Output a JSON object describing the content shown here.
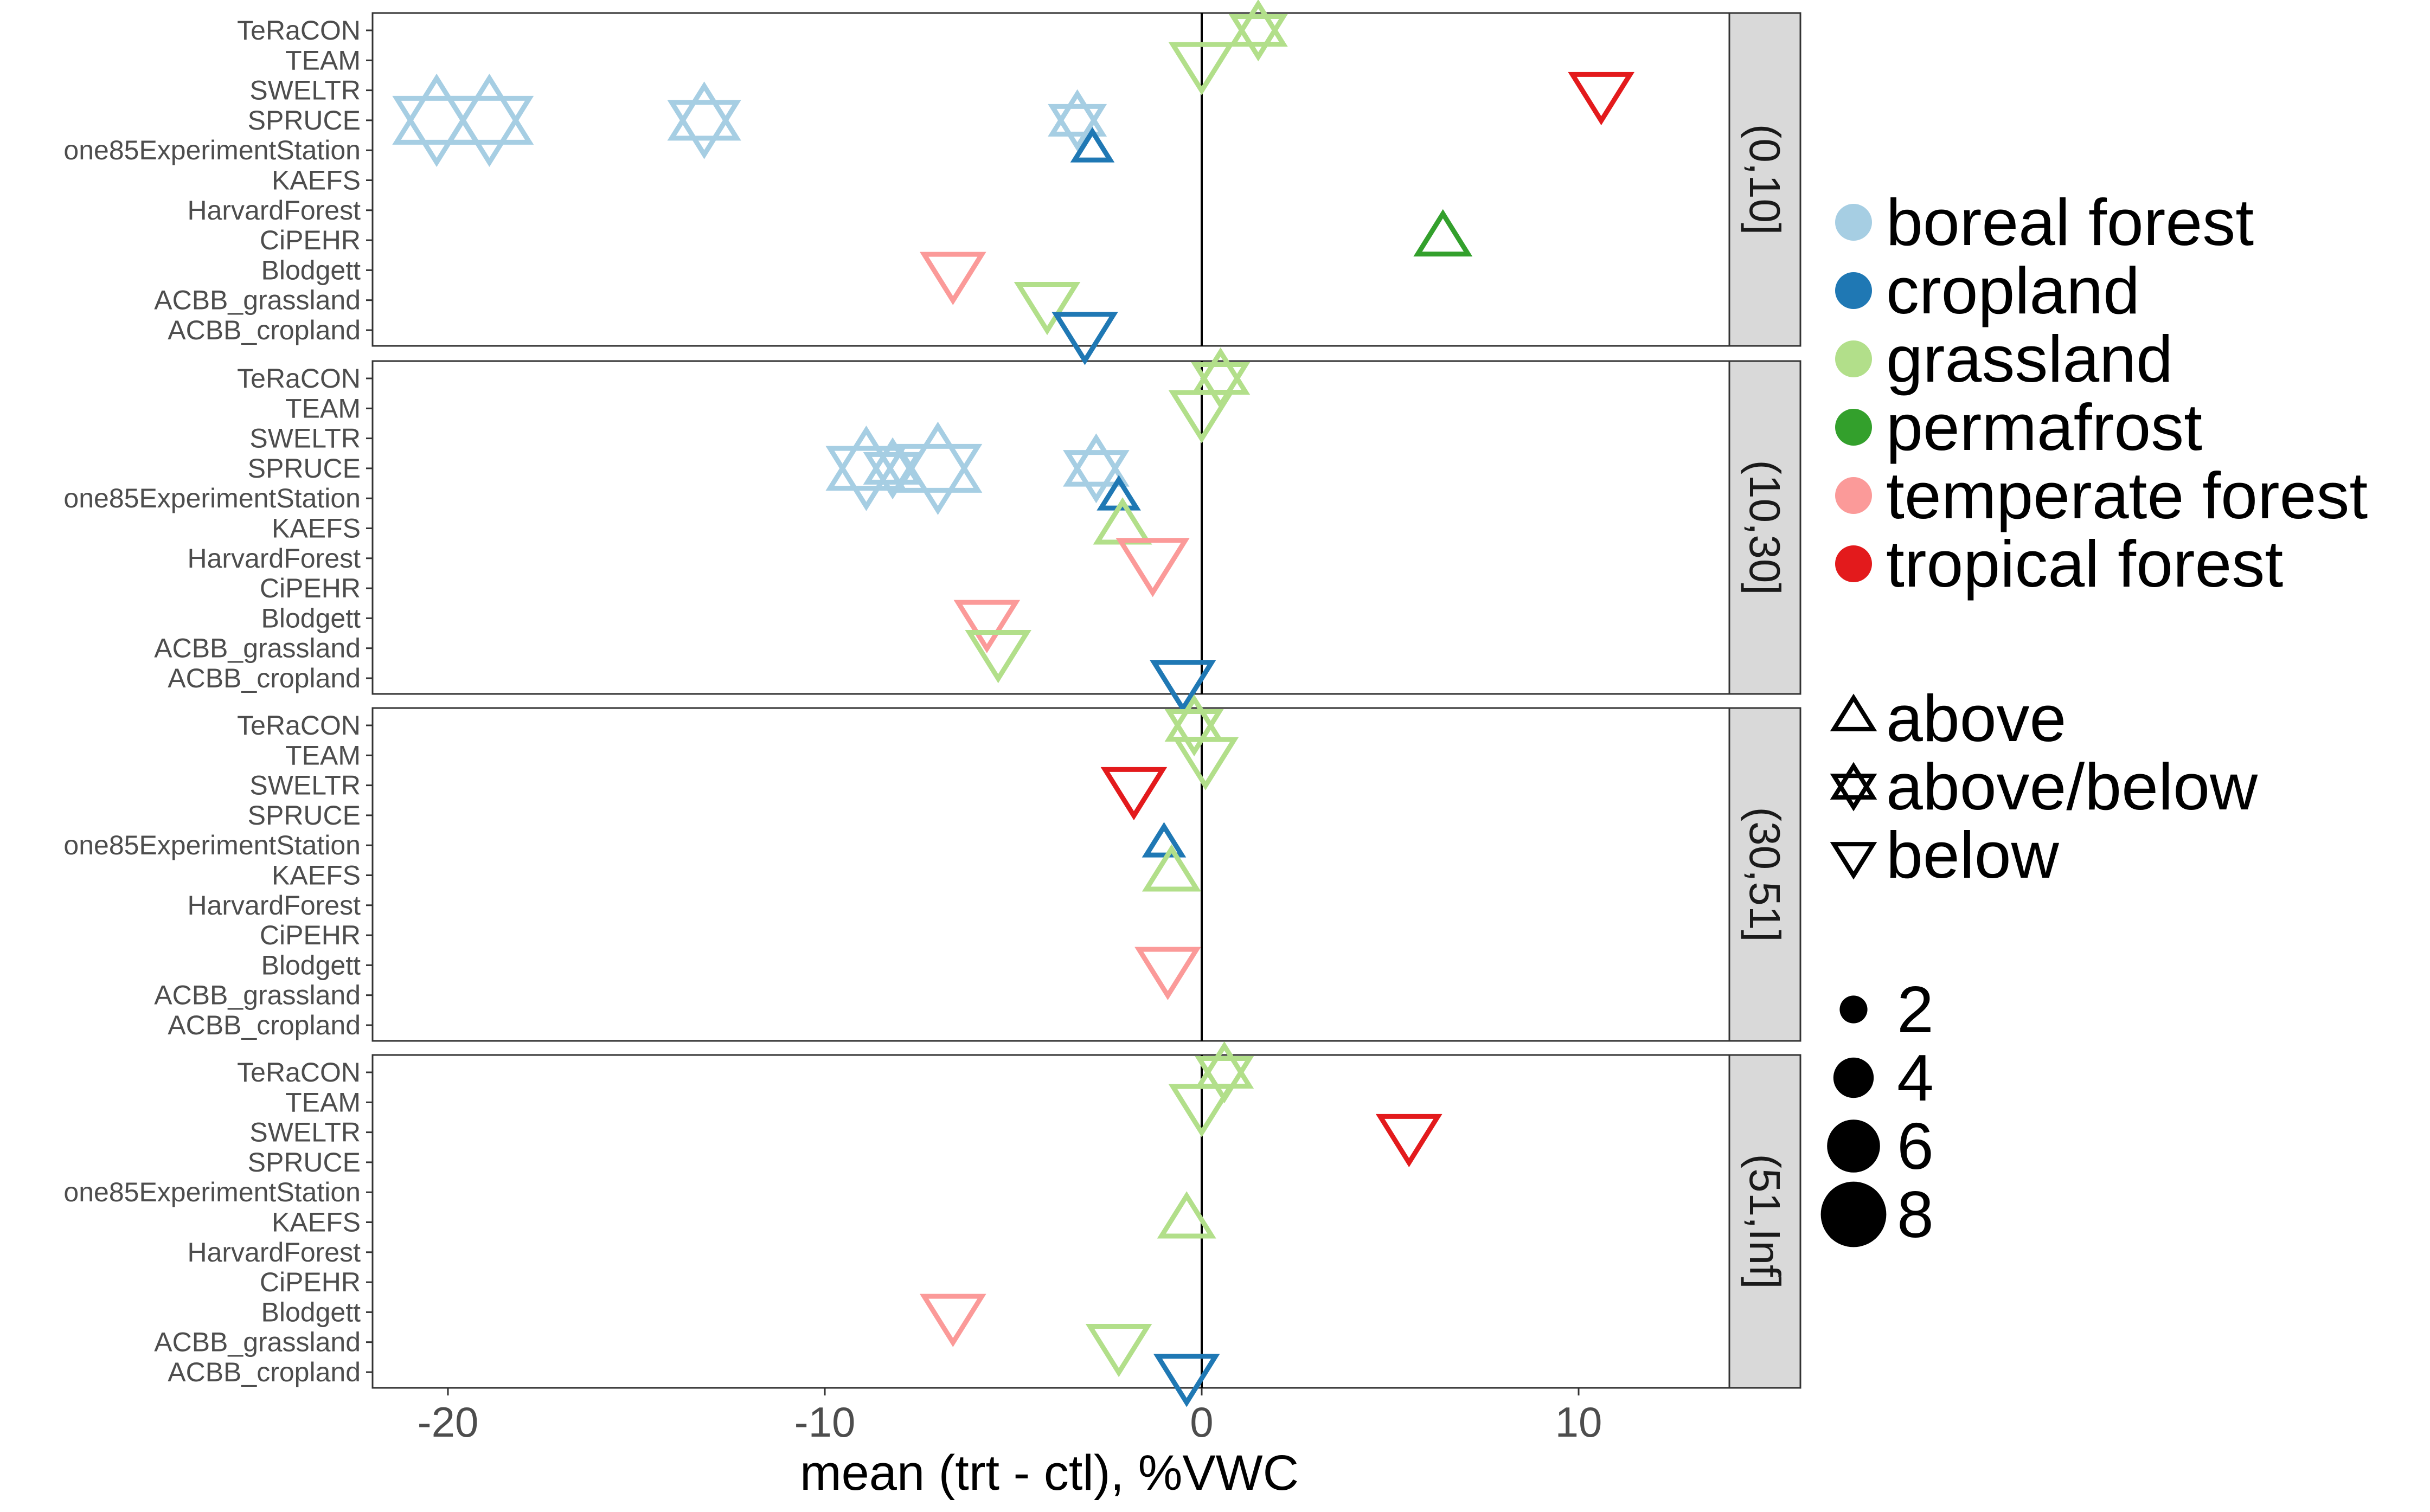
{
  "chart_data": {
    "type": "scatter",
    "xlabel": "mean (trt - ctl), %VWC",
    "xlim": [
      -22,
      14
    ],
    "x_ticks": [
      -20,
      -10,
      0,
      10
    ],
    "x_tick_labels": [
      "-20",
      "-10",
      "0",
      "10"
    ],
    "reference_line_x": 0,
    "grid": false,
    "legend_position": "right",
    "sites": [
      "TeRaCON",
      "TEAM",
      "SWELTR",
      "SPRUCE",
      "one85ExperimentStation",
      "KAEFS",
      "HarvardForest",
      "CiPEHR",
      "Blodgett",
      "ACBB_grassland",
      "ACBB_cropland"
    ],
    "facets": [
      "(0,10]",
      "(10,30]",
      "(30,51]",
      "(51,Inf]"
    ],
    "legend_ecosystem": [
      {
        "name": "boreal forest",
        "color": "#a6cee3"
      },
      {
        "name": "cropland",
        "color": "#1f78b4"
      },
      {
        "name": "grassland",
        "color": "#b2df8a"
      },
      {
        "name": "permafrost",
        "color": "#33a02c"
      },
      {
        "name": "temperate forest",
        "color": "#fb9a99"
      },
      {
        "name": "tropical forest",
        "color": "#e31a1c"
      }
    ],
    "legend_treatment": [
      {
        "name": "above",
        "shape": "triangle-up"
      },
      {
        "name": "above/below",
        "shape": "star-of-david"
      },
      {
        "name": "below",
        "shape": "triangle-down"
      }
    ],
    "legend_size": [
      {
        "label": "2",
        "value": 2
      },
      {
        "label": "4",
        "value": 4
      },
      {
        "label": "6",
        "value": 6
      },
      {
        "label": "8",
        "value": 8
      }
    ],
    "points": [
      {
        "facet": "(0,10]",
        "site": "TeRaCON",
        "x": 1.5,
        "ecosystem": "grassland",
        "treatment": "above/below",
        "size": 4
      },
      {
        "facet": "(0,10]",
        "site": "TEAM",
        "x": 0.0,
        "ecosystem": "grassland",
        "treatment": "below",
        "size": 5
      },
      {
        "facet": "(0,10]",
        "site": "SWELTR",
        "x": 10.6,
        "ecosystem": "tropical forest",
        "treatment": "below",
        "size": 5
      },
      {
        "facet": "(0,10]",
        "site": "SPRUCE",
        "x": -20.3,
        "ecosystem": "boreal forest",
        "treatment": "above/below",
        "size": 8
      },
      {
        "facet": "(0,10]",
        "site": "SPRUCE",
        "x": -18.9,
        "ecosystem": "boreal forest",
        "treatment": "above/below",
        "size": 8
      },
      {
        "facet": "(0,10]",
        "site": "SPRUCE",
        "x": -13.2,
        "ecosystem": "boreal forest",
        "treatment": "above/below",
        "size": 6
      },
      {
        "facet": "(0,10]",
        "site": "SPRUCE",
        "x": -3.3,
        "ecosystem": "boreal forest",
        "treatment": "above/below",
        "size": 4
      },
      {
        "facet": "(0,10]",
        "site": "one85ExperimentStation",
        "x": -2.9,
        "ecosystem": "cropland",
        "treatment": "above",
        "size": 2
      },
      {
        "facet": "(0,10]",
        "site": "CiPEHR",
        "x": 6.4,
        "ecosystem": "permafrost",
        "treatment": "above",
        "size": 4
      },
      {
        "facet": "(0,10]",
        "site": "Blodgett",
        "x": -6.6,
        "ecosystem": "temperate forest",
        "treatment": "below",
        "size": 5
      },
      {
        "facet": "(0,10]",
        "site": "ACBB_grassland",
        "x": -4.1,
        "ecosystem": "grassland",
        "treatment": "below",
        "size": 5
      },
      {
        "facet": "(0,10]",
        "site": "ACBB_cropland",
        "x": -3.1,
        "ecosystem": "cropland",
        "treatment": "below",
        "size": 5
      },
      {
        "facet": "(10,30]",
        "site": "TeRaCON",
        "x": 0.5,
        "ecosystem": "grassland",
        "treatment": "above/below",
        "size": 4
      },
      {
        "facet": "(10,30]",
        "site": "TEAM",
        "x": 0.0,
        "ecosystem": "grassland",
        "treatment": "below",
        "size": 5
      },
      {
        "facet": "(10,30]",
        "site": "SPRUCE",
        "x": -8.9,
        "ecosystem": "boreal forest",
        "treatment": "above/below",
        "size": 7
      },
      {
        "facet": "(10,30]",
        "site": "SPRUCE",
        "x": -8.2,
        "ecosystem": "boreal forest",
        "treatment": "above/below",
        "size": 4
      },
      {
        "facet": "(10,30]",
        "site": "SPRUCE",
        "x": -7.0,
        "ecosystem": "boreal forest",
        "treatment": "above/below",
        "size": 8
      },
      {
        "facet": "(10,30]",
        "site": "SPRUCE",
        "x": -2.8,
        "ecosystem": "boreal forest",
        "treatment": "above/below",
        "size": 5
      },
      {
        "facet": "(10,30]",
        "site": "one85ExperimentStation",
        "x": -2.2,
        "ecosystem": "cropland",
        "treatment": "above",
        "size": 2
      },
      {
        "facet": "(10,30]",
        "site": "KAEFS",
        "x": -2.1,
        "ecosystem": "grassland",
        "treatment": "above",
        "size": 4
      },
      {
        "facet": "(10,30]",
        "site": "HarvardForest",
        "x": -1.3,
        "ecosystem": "temperate forest",
        "treatment": "below",
        "size": 6
      },
      {
        "facet": "(10,30]",
        "site": "Blodgett",
        "x": -5.7,
        "ecosystem": "temperate forest",
        "treatment": "below",
        "size": 5
      },
      {
        "facet": "(10,30]",
        "site": "ACBB_grassland",
        "x": -5.4,
        "ecosystem": "grassland",
        "treatment": "below",
        "size": 5
      },
      {
        "facet": "(10,30]",
        "site": "ACBB_cropland",
        "x": -0.5,
        "ecosystem": "cropland",
        "treatment": "below",
        "size": 5
      },
      {
        "facet": "(30,51]",
        "site": "TeRaCON",
        "x": -0.2,
        "ecosystem": "grassland",
        "treatment": "above/below",
        "size": 4
      },
      {
        "facet": "(30,51]",
        "site": "TEAM",
        "x": 0.1,
        "ecosystem": "grassland",
        "treatment": "below",
        "size": 5
      },
      {
        "facet": "(30,51]",
        "site": "SWELTR",
        "x": -1.8,
        "ecosystem": "tropical forest",
        "treatment": "below",
        "size": 5
      },
      {
        "facet": "(30,51]",
        "site": "one85ExperimentStation",
        "x": -1.0,
        "ecosystem": "cropland",
        "treatment": "above",
        "size": 2
      },
      {
        "facet": "(30,51]",
        "site": "KAEFS",
        "x": -0.8,
        "ecosystem": "grassland",
        "treatment": "above",
        "size": 4
      },
      {
        "facet": "(30,51]",
        "site": "Blodgett",
        "x": -0.9,
        "ecosystem": "temperate forest",
        "treatment": "below",
        "size": 5
      },
      {
        "facet": "(51,Inf]",
        "site": "TeRaCON",
        "x": 0.6,
        "ecosystem": "grassland",
        "treatment": "above/below",
        "size": 4
      },
      {
        "facet": "(51,Inf]",
        "site": "TEAM",
        "x": 0.0,
        "ecosystem": "grassland",
        "treatment": "below",
        "size": 5
      },
      {
        "facet": "(51,Inf]",
        "site": "SWELTR",
        "x": 5.5,
        "ecosystem": "tropical forest",
        "treatment": "below",
        "size": 5
      },
      {
        "facet": "(51,Inf]",
        "site": "KAEFS",
        "x": -0.4,
        "ecosystem": "grassland",
        "treatment": "above",
        "size": 4
      },
      {
        "facet": "(51,Inf]",
        "site": "Blodgett",
        "x": -6.6,
        "ecosystem": "temperate forest",
        "treatment": "below",
        "size": 5
      },
      {
        "facet": "(51,Inf]",
        "site": "ACBB_grassland",
        "x": -2.2,
        "ecosystem": "grassland",
        "treatment": "below",
        "size": 5
      },
      {
        "facet": "(51,Inf]",
        "site": "ACBB_cropland",
        "x": -0.4,
        "ecosystem": "cropland",
        "treatment": "below",
        "size": 5
      }
    ]
  }
}
